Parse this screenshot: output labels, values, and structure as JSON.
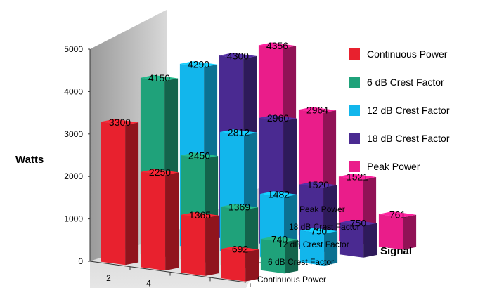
{
  "chart_data": {
    "type": "bar",
    "subtype": "3d-grouped",
    "title": "",
    "ylabel": "Watts",
    "zlabel": "Signal",
    "ylim": [
      0,
      5000
    ],
    "yticks": [
      "0",
      "1000",
      "2000",
      "3000",
      "4000",
      "5000"
    ],
    "categories": [
      "2",
      "4",
      "",
      ""
    ],
    "grid": false,
    "legend_position": "right",
    "series": [
      {
        "name": "Continuous Power",
        "color": "#e8212e",
        "values": [
          3300,
          2250,
          1365,
          692
        ]
      },
      {
        "name": "6 dB Crest Factor",
        "color": "#1fa27a",
        "values": [
          4150,
          2450,
          1369,
          740
        ]
      },
      {
        "name": "12 dB Crest Factor",
        "color": "#12b6ec",
        "values": [
          4290,
          2812,
          1482,
          750
        ]
      },
      {
        "name": "18 dB Crest Factor",
        "color": "#4a2a91",
        "values": [
          4300,
          2960,
          1520,
          750
        ]
      },
      {
        "name": "Peak Power",
        "color": "#ea1d8a",
        "values": [
          4356,
          2964,
          1521,
          761
        ]
      }
    ],
    "depth_axis_labels": [
      "Continuous Power",
      "6 dB Crest Factor",
      "12 dB Crest Factor",
      "18 dB Crest Factor",
      "Peak Power"
    ]
  }
}
